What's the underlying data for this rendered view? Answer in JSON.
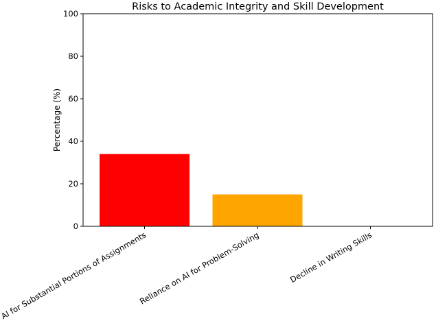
{
  "chart_data": {
    "type": "bar",
    "title": "Risks to Academic Integrity and Skill Development",
    "xlabel": "",
    "ylabel": "Percentage (%)",
    "ylim": [
      0,
      100
    ],
    "yticks": [
      0,
      20,
      40,
      60,
      80,
      100
    ],
    "categories": [
      "AI for Substantial Portions of Assignments",
      "Reliance on AI for Problem-Solving",
      "Decline in Writing Skills"
    ],
    "values": [
      34,
      15,
      0
    ],
    "colors": [
      "#ff0000",
      "#ffa500",
      "#1f77b4"
    ],
    "grid": false,
    "legend": "none"
  }
}
